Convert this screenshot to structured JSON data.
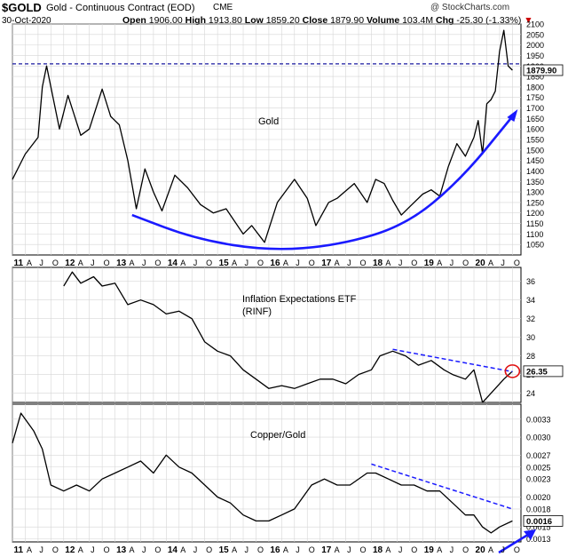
{
  "header": {
    "symbol": "$GOLD",
    "name": "Gold - Continuous Contract (EOD)",
    "exchange": "CME",
    "date": "30-Oct-2020",
    "open_label": "Open",
    "open": "1906.00",
    "high_label": "High",
    "high": "1913.80",
    "low_label": "Low",
    "low": "1859.20",
    "close_label": "Close",
    "close": "1879.90",
    "volume_label": "Volume",
    "volume": "103.4M",
    "chg_label": "Chg",
    "chg": "-25.30 (-1.33%)",
    "watermark": "@ StockCharts.com"
  },
  "colors": {
    "line": "#000000",
    "trend": "#1a1aff",
    "grid": "#d6d6d6",
    "circle": "#e01010"
  },
  "x_axis": {
    "ticks": [
      "11",
      "A",
      "J",
      "O",
      "12",
      "A",
      "J",
      "O",
      "13",
      "A",
      "J",
      "O",
      "14",
      "A",
      "J",
      "O",
      "15",
      "A",
      "J",
      "O",
      "16",
      "A",
      "J",
      "O",
      "17",
      "A",
      "J",
      "O",
      "18",
      "A",
      "J",
      "O",
      "19",
      "A",
      "J",
      "O",
      "20",
      "A",
      "J",
      "O"
    ]
  },
  "chart_data": [
    {
      "type": "line",
      "title": "Gold",
      "x_range": [
        "2011-01",
        "2020-10"
      ],
      "ylim": [
        1000,
        2100
      ],
      "y_ticks": [
        1050,
        1100,
        1150,
        1200,
        1250,
        1300,
        1350,
        1400,
        1450,
        1500,
        1550,
        1600,
        1650,
        1700,
        1750,
        1800,
        1850,
        1900,
        1950,
        2000,
        2050,
        2100
      ],
      "x": [
        "2011-01",
        "2011-04",
        "2011-07",
        "2011-08",
        "2011-09",
        "2011-12",
        "2012-02",
        "2012-05",
        "2012-07",
        "2012-10",
        "2012-12",
        "2013-02",
        "2013-04",
        "2013-06",
        "2013-08",
        "2013-10",
        "2013-12",
        "2014-03",
        "2014-06",
        "2014-09",
        "2014-12",
        "2015-03",
        "2015-07",
        "2015-09",
        "2015-12",
        "2016-03",
        "2016-07",
        "2016-10",
        "2016-12",
        "2017-03",
        "2017-05",
        "2017-09",
        "2017-12",
        "2018-02",
        "2018-04",
        "2018-06",
        "2018-08",
        "2018-10",
        "2019-01",
        "2019-03",
        "2019-05",
        "2019-07",
        "2019-09",
        "2019-11",
        "2020-01",
        "2020-02",
        "2020-03",
        "2020-04",
        "2020-05",
        "2020-06",
        "2020-07",
        "2020-08",
        "2020-09",
        "2020-10"
      ],
      "values": [
        1360,
        1480,
        1560,
        1800,
        1900,
        1600,
        1760,
        1570,
        1600,
        1790,
        1660,
        1620,
        1450,
        1220,
        1410,
        1300,
        1210,
        1380,
        1320,
        1240,
        1200,
        1220,
        1100,
        1140,
        1060,
        1250,
        1360,
        1270,
        1140,
        1250,
        1270,
        1340,
        1250,
        1360,
        1340,
        1260,
        1190,
        1230,
        1290,
        1310,
        1280,
        1420,
        1530,
        1470,
        1560,
        1640,
        1480,
        1720,
        1740,
        1780,
        1970,
        2070,
        1900,
        1880
      ],
      "last_label": "1879.90",
      "reference_level": 1910,
      "trend_curve": {
        "x": [
          "2013-05",
          "2014-08",
          "2016-01",
          "2017-05",
          "2018-09",
          "2019-10",
          "2020-10"
        ],
        "values": [
          1190,
          1075,
          1020,
          1045,
          1140,
          1360,
          1660
        ]
      }
    },
    {
      "type": "line",
      "title": "Inflation Expectations ETF",
      "subtitle": "(RINF)",
      "x_range": [
        "2011-01",
        "2020-10"
      ],
      "ylim": [
        23,
        37.5
      ],
      "y_ticks": [
        24,
        26,
        28,
        30,
        32,
        34,
        36
      ],
      "x": [
        "2012-01",
        "2012-03",
        "2012-05",
        "2012-08",
        "2012-10",
        "2013-01",
        "2013-04",
        "2013-07",
        "2013-10",
        "2014-01",
        "2014-04",
        "2014-07",
        "2014-10",
        "2015-01",
        "2015-04",
        "2015-07",
        "2015-10",
        "2016-01",
        "2016-04",
        "2016-07",
        "2016-10",
        "2017-01",
        "2017-04",
        "2017-07",
        "2017-10",
        "2018-01",
        "2018-03",
        "2018-06",
        "2018-09",
        "2018-12",
        "2019-03",
        "2019-06",
        "2019-08",
        "2019-11",
        "2020-01",
        "2020-03",
        "2020-04",
        "2020-06",
        "2020-08",
        "2020-10"
      ],
      "values": [
        35.5,
        37.0,
        35.8,
        36.5,
        35.5,
        35.8,
        33.5,
        34.0,
        33.5,
        32.5,
        32.8,
        32.0,
        29.5,
        28.5,
        28.0,
        26.5,
        25.5,
        24.5,
        24.8,
        24.5,
        25.0,
        25.5,
        25.5,
        25.0,
        26.0,
        26.5,
        28.0,
        28.5,
        28.0,
        27.0,
        27.5,
        26.5,
        26.0,
        25.5,
        26.5,
        23.0,
        23.5,
        24.5,
        25.5,
        26.35
      ],
      "last_label": "26.35",
      "trend_line": {
        "x": [
          "2018-06",
          "2020-10"
        ],
        "values": [
          28.7,
          26.3
        ]
      }
    },
    {
      "type": "line",
      "title": "Copper/Gold",
      "x_range": [
        "2011-01",
        "2020-10"
      ],
      "ylim": [
        0.00125,
        0.00355
      ],
      "y_ticks": [
        0.0013,
        0.0015,
        0.0018,
        0.002,
        0.0023,
        0.0025,
        0.0027,
        0.003,
        0.0033
      ],
      "y_tick_labels": [
        "0.0013",
        "0.0015",
        "0.0018",
        "0.0020",
        "0.0023",
        "0.0025",
        "0.0027",
        "0.0030",
        "0.0033"
      ],
      "x": [
        "2011-01",
        "2011-03",
        "2011-06",
        "2011-08",
        "2011-10",
        "2012-01",
        "2012-04",
        "2012-07",
        "2012-10",
        "2013-01",
        "2013-04",
        "2013-07",
        "2013-10",
        "2014-01",
        "2014-04",
        "2014-07",
        "2014-10",
        "2015-01",
        "2015-04",
        "2015-07",
        "2015-10",
        "2016-01",
        "2016-04",
        "2016-07",
        "2016-11",
        "2017-02",
        "2017-05",
        "2017-08",
        "2017-12",
        "2018-02",
        "2018-05",
        "2018-08",
        "2018-11",
        "2019-02",
        "2019-05",
        "2019-08",
        "2019-11",
        "2020-01",
        "2020-03",
        "2020-05",
        "2020-07",
        "2020-10"
      ],
      "values": [
        0.0029,
        0.0034,
        0.0031,
        0.0028,
        0.0022,
        0.0021,
        0.0022,
        0.0021,
        0.0023,
        0.0024,
        0.0025,
        0.0026,
        0.0024,
        0.0027,
        0.0025,
        0.0024,
        0.0022,
        0.002,
        0.0019,
        0.0017,
        0.0016,
        0.0016,
        0.0017,
        0.0018,
        0.0022,
        0.0023,
        0.0022,
        0.0022,
        0.0024,
        0.0024,
        0.0023,
        0.0022,
        0.0022,
        0.0021,
        0.0021,
        0.0019,
        0.0017,
        0.0017,
        0.0015,
        0.0014,
        0.0015,
        0.0016
      ],
      "last_label": "0.0016",
      "trend_line": {
        "x": [
          "2018-01",
          "2020-10"
        ],
        "values": [
          0.00255,
          0.0018
        ]
      }
    }
  ]
}
